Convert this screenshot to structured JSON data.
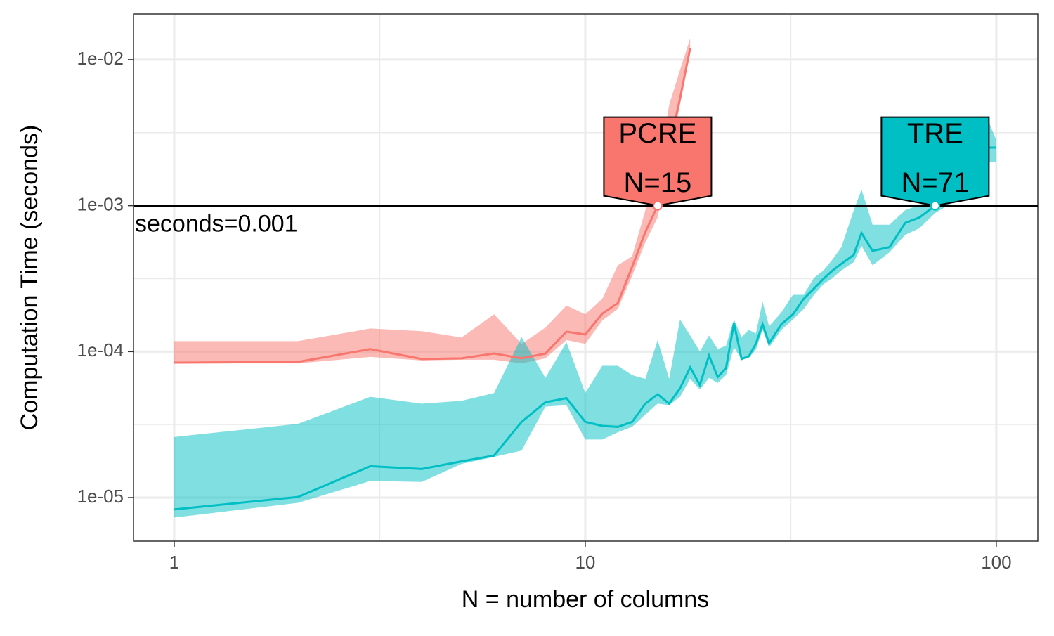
{
  "chart_data": {
    "type": "line",
    "xlabel": "N = number of columns",
    "ylabel": "Computation Time (seconds)",
    "log_x": true,
    "log_y": true,
    "grid": true,
    "xlim": [
      0.796,
      126.2
    ],
    "ylim": [
      5.03e-06,
      0.02054
    ],
    "xticks": [
      1,
      10,
      100
    ],
    "yticks": [
      {
        "value": 1e-05,
        "label": "1e-05"
      },
      {
        "value": 0.0001,
        "label": "1e-04"
      },
      {
        "value": 0.001,
        "label": "1e-03"
      },
      {
        "value": 0.01,
        "label": "1e-02"
      }
    ],
    "xminorticks": [
      3.162,
      31.62
    ],
    "yminorticks": [
      3.162e-05,
      0.0003162,
      0.003162
    ],
    "hline": {
      "value": 0.001,
      "label": "seconds=0.001"
    },
    "series": [
      {
        "name": "PCRE",
        "color": "#F8766D",
        "x": [
          1,
          2,
          3,
          4,
          5,
          6,
          7,
          8,
          9,
          10,
          11,
          12,
          13,
          14,
          15,
          16,
          17,
          18
        ],
        "values": [
          8.4e-05,
          8.5e-05,
          0.000104,
          8.9e-05,
          9e-05,
          9.7e-05,
          9e-05,
          9.7e-05,
          0.000137,
          0.000131,
          0.000182,
          0.000215,
          0.00038,
          0.00066,
          0.001,
          0.0025,
          0.0054,
          0.012
        ],
        "upper": [
          0.000118,
          0.000118,
          0.000144,
          0.000138,
          0.000125,
          0.00018,
          0.000113,
          0.000146,
          0.000207,
          0.00018,
          0.00023,
          0.00039,
          0.00045,
          0.00093,
          0.0016,
          0.0049,
          0.0085,
          0.014
        ],
        "lower": [
          8.3e-05,
          8.3e-05,
          9.2e-05,
          8.7e-05,
          8.8e-05,
          8.8e-05,
          8.3e-05,
          9e-05,
          0.00012,
          0.000113,
          0.000163,
          0.000196,
          0.00033,
          0.00056,
          0.00083,
          0.0021,
          0.0049,
          0.0115
        ]
      },
      {
        "name": "TRE",
        "color": "#00BFC4",
        "x": [
          1,
          2,
          3,
          4,
          5,
          6,
          7,
          8,
          9,
          10,
          11,
          12,
          13,
          14,
          15,
          16,
          17,
          18,
          19,
          20,
          21,
          22,
          23,
          24,
          25,
          26,
          27,
          28,
          30,
          32,
          34,
          36,
          38,
          40,
          42,
          45,
          47,
          50,
          55,
          60,
          65,
          71,
          80,
          90,
          95,
          100
        ],
        "values": [
          8.3e-06,
          1.01e-05,
          1.64e-05,
          1.57e-05,
          1.77e-05,
          1.94e-05,
          3.3e-05,
          4.5e-05,
          4.8e-05,
          3.3e-05,
          3.1e-05,
          3.05e-05,
          3.3e-05,
          4.4e-05,
          5.1e-05,
          4.4e-05,
          5.6e-05,
          7.8e-05,
          5.9e-05,
          9.4e-05,
          6.7e-05,
          7.7e-05,
          0.000157,
          8.9e-05,
          9.3e-05,
          0.000113,
          0.000154,
          0.000114,
          0.000154,
          0.00018,
          0.00023,
          0.00027,
          0.000316,
          0.00036,
          0.0004,
          0.00046,
          0.00065,
          0.00049,
          0.00052,
          0.00076,
          0.00083,
          0.001,
          0.00129,
          0.0019,
          0.0025,
          0.0025
        ],
        "upper": [
          2.6e-05,
          3.2e-05,
          4.9e-05,
          4.4e-05,
          4.6e-05,
          5.2e-05,
          0.000126,
          6.6e-05,
          0.000116,
          5.2e-05,
          8e-05,
          8e-05,
          6.9e-05,
          6.5e-05,
          0.00012,
          6.5e-05,
          0.000166,
          0.000129,
          0.0001,
          0.000129,
          0.000104,
          0.00011,
          0.000166,
          0.000126,
          0.000141,
          0.000133,
          0.00022,
          0.000149,
          0.000186,
          0.000245,
          0.000245,
          0.00032,
          0.00036,
          0.00043,
          0.00052,
          0.00093,
          0.00129,
          0.00074,
          0.00074,
          0.00093,
          0.00101,
          0.00115,
          0.00152,
          0.00296,
          0.004,
          0.0028
        ],
        "lower": [
          7.3e-06,
          9.2e-06,
          1.3e-05,
          1.28e-05,
          1.7e-05,
          1.9e-05,
          2.1e-05,
          4.2e-05,
          4.3e-05,
          2.5e-05,
          2.5e-05,
          2.8e-05,
          3.05e-05,
          3.7e-05,
          4.4e-05,
          4.3e-05,
          4.9e-05,
          6.5e-05,
          5.5e-05,
          6.6e-05,
          6.1e-05,
          6.9e-05,
          0.000107,
          8.9e-05,
          9.1e-05,
          0.000103,
          0.000141,
          0.000107,
          0.000141,
          0.000166,
          0.000196,
          0.000245,
          0.00029,
          0.00032,
          0.00036,
          0.00041,
          0.00053,
          0.00039,
          0.00048,
          0.00063,
          0.0007,
          0.00089,
          0.00109,
          0.0017,
          0.002,
          0.002
        ]
      }
    ],
    "annotations": [
      {
        "lines": [
          "PCRE",
          "N=15"
        ],
        "x": 15,
        "y": 0.001,
        "series": 0
      },
      {
        "lines": [
          "TRE",
          "N=71"
        ],
        "x": 71,
        "y": 0.001,
        "series": 1
      }
    ]
  }
}
